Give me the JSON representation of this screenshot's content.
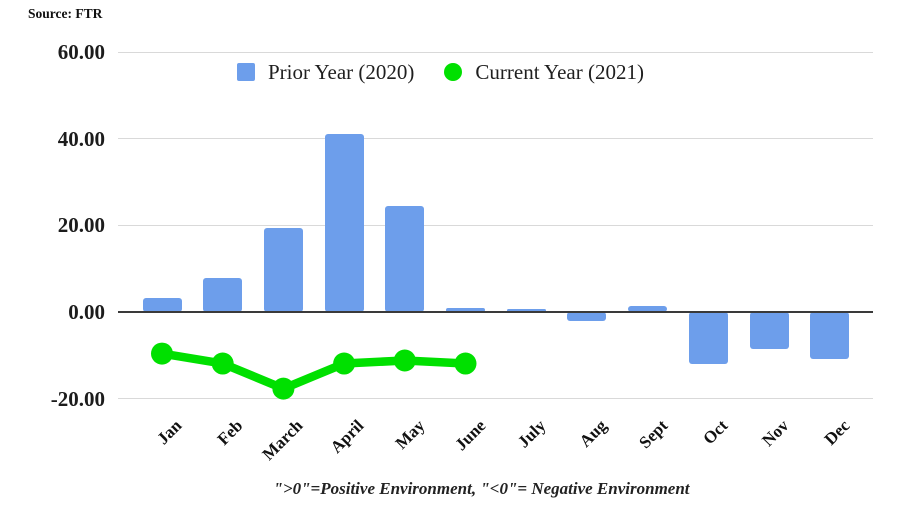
{
  "page": {
    "source_label": "Source: FTR",
    "caption": "\">0\"=Positive Environment, \"<0\"= Negative Environment"
  },
  "legend": {
    "items": [
      {
        "label": "Prior Year (2020)",
        "marker": "square",
        "color": "#6d9eeb"
      },
      {
        "label": "Current Year (2021)",
        "marker": "circle",
        "color": "#00e000"
      }
    ]
  },
  "chart_data": {
    "type": "combo-bar-line",
    "categories": [
      "Jan",
      "Feb",
      "March",
      "April",
      "May",
      "June",
      "July",
      "Aug",
      "Sept",
      "Oct",
      "Nov",
      "Dec"
    ],
    "series": [
      {
        "name": "Prior Year (2020)",
        "type": "bar",
        "color": "#6d9eeb",
        "values": [
          3.2,
          7.8,
          19.4,
          41.2,
          24.5,
          1.0,
          0.2,
          -2.1,
          1.3,
          -12.1,
          -8.6,
          -10.9
        ]
      },
      {
        "name": "Current Year (2021)",
        "type": "line",
        "color": "#00e000",
        "values": [
          -9.6,
          -11.9,
          -17.7,
          -11.9,
          -11.2,
          -11.9,
          null,
          null,
          null,
          null,
          null,
          null
        ]
      }
    ],
    "y_axis": {
      "ticks": [
        {
          "value": 60,
          "label": "60.00"
        },
        {
          "value": 40,
          "label": "40.00"
        },
        {
          "value": 20,
          "label": "20.00"
        },
        {
          "value": 0,
          "label": "0.00"
        },
        {
          "value": -20,
          "label": "-20.00"
        }
      ],
      "range": [
        -25,
        60
      ]
    },
    "grid": true,
    "legend_position": "top-inside",
    "colors": {
      "grid": "#d9d9d9",
      "axis": "#3a3a3a",
      "text": "#1a1a1a"
    }
  }
}
